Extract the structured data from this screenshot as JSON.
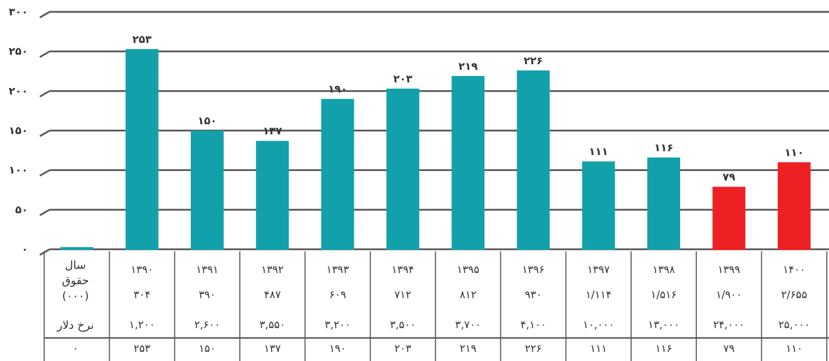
{
  "chart_data": {
    "type": "bar",
    "ylim": [
      0,
      300
    ],
    "yticks": [
      "۰",
      "۵۰",
      "۱۰۰",
      "۱۵۰",
      "۲۰۰",
      "۲۵۰",
      "۳۰۰"
    ],
    "grid": true,
    "categories": [
      "۱۳۹۰",
      "۱۳۹۱",
      "۱۳۹۲",
      "۱۳۹۳",
      "۱۳۹۴",
      "۱۳۹۵",
      "۱۳۹۶",
      "۱۳۹۷",
      "۱۳۹۸",
      "۱۳۹۹",
      "۱۴۰۰"
    ],
    "values": [
      253,
      150,
      137,
      190,
      203,
      219,
      226,
      111,
      116,
      79,
      110
    ],
    "value_labels": [
      "۲۵۳",
      "۱۵۰",
      "۱۳۷",
      "۱۹۰",
      "۲۰۳",
      "۲۱۹",
      "۲۲۶",
      "۱۱۱",
      "۱۱۶",
      "۷۹",
      "۱۱۰"
    ],
    "first_column": {
      "value": 0,
      "label": "۰"
    },
    "colors": {
      "bar": "#12a1aa",
      "highlight": "#ed2024",
      "grid": "#555555",
      "text": "#333333"
    },
    "highlight_indices": [
      9,
      10
    ],
    "table": {
      "row_headers": [
        "سال",
        "حقوق",
        "(۰۰۰)",
        "نرخ دلار"
      ],
      "salary": [
        "۳۰۴",
        "۳۹۰",
        "۴۸۷",
        "۶۰۹",
        "۷۱۲",
        "۸۱۲",
        "۹۳۰",
        "۱/۱۱۴",
        "۱/۵۱۶",
        "۱/۹۰۰",
        "۲/۶۵۵"
      ],
      "dollar_rate": [
        "۱,۲۰۰",
        "۲,۶۰۰",
        "۳,۵۵۰",
        "۳,۲۰۰",
        "۳,۵۰۰",
        "۳,۷۰۰",
        "۴,۱۰۰",
        "۱۰,۰۰۰",
        "۱۳,۰۰۰",
        "۲۴,۰۰۰",
        "۲۵,۰۰۰"
      ]
    }
  }
}
